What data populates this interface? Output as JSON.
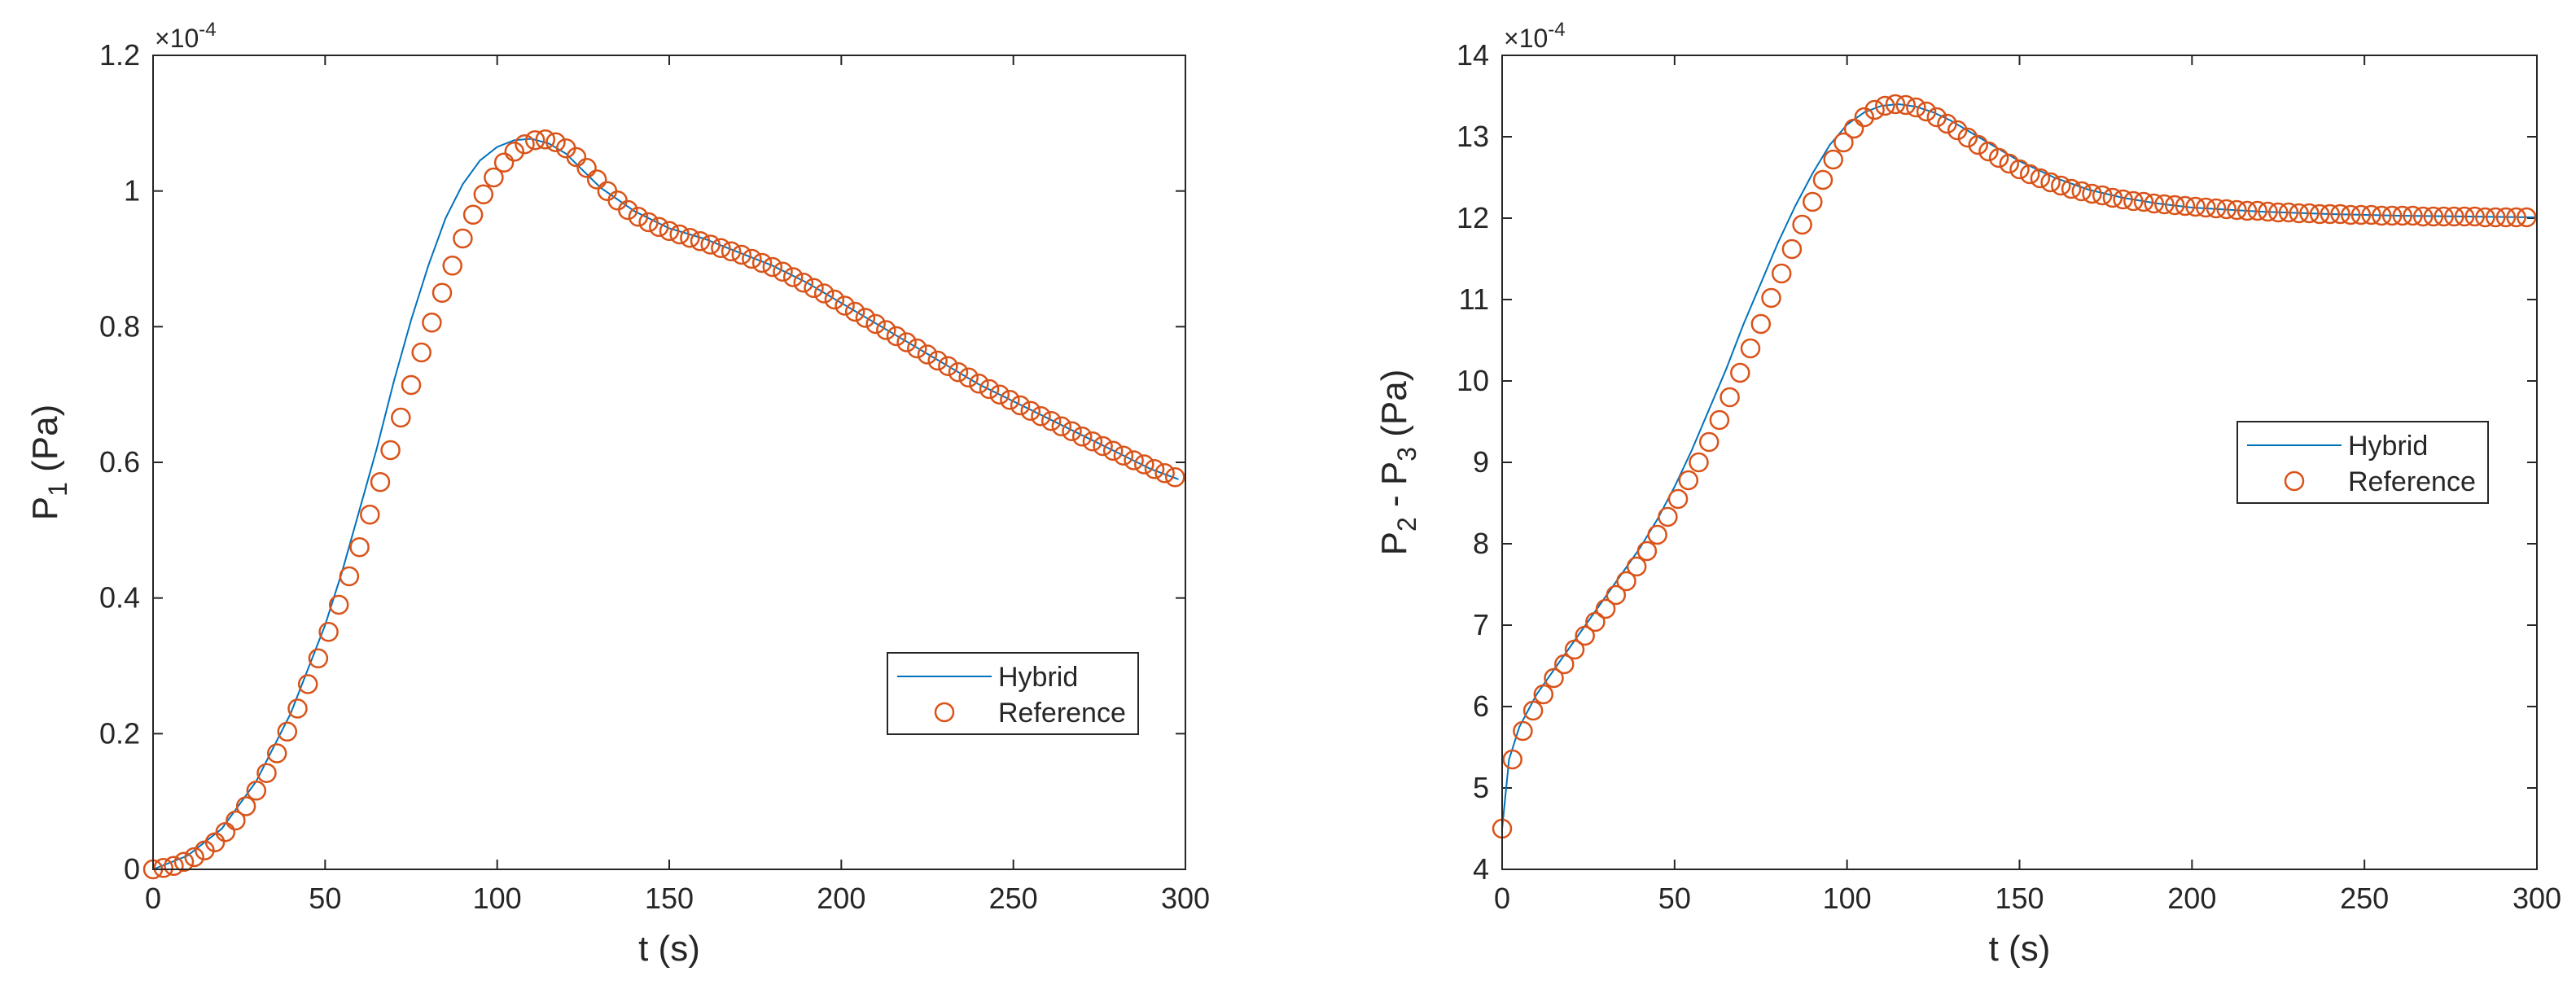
{
  "colors": {
    "hybrid": "#0072BD",
    "reference": "#D95319",
    "axis": "#262626"
  },
  "chart_data": [
    {
      "type": "line",
      "title": "",
      "xlabel": "t (s)",
      "ylabel_main": "P",
      "ylabel_sub": "1",
      "ylabel_tail": " (Pa)",
      "exponent_prefix": "×10",
      "exponent_power": "-4",
      "xlim": [
        0,
        300
      ],
      "ylim": [
        0,
        1.2
      ],
      "xticks": [
        0,
        50,
        100,
        150,
        200,
        250,
        300
      ],
      "xtick_labels": [
        "0",
        "50",
        "100",
        "150",
        "200",
        "250",
        "300"
      ],
      "yticks": [
        0,
        0.2,
        0.4,
        0.6,
        0.8,
        1,
        1.2
      ],
      "ytick_labels": [
        "0",
        "0.2",
        "0.4",
        "0.6",
        "0.8",
        "1",
        "1.2"
      ],
      "legend_position": "lower-right",
      "series": [
        {
          "name": "Hybrid",
          "style": "line",
          "x": [
            0,
            10,
            20,
            30,
            40,
            50,
            55,
            60,
            65,
            70,
            75,
            80,
            85,
            90,
            95,
            100,
            105,
            110,
            115,
            120,
            125,
            130,
            140,
            150,
            160,
            170,
            180,
            190,
            200,
            210,
            220,
            230,
            240,
            250,
            260,
            270,
            280,
            290,
            298
          ],
          "values": [
            0,
            0.02,
            0.06,
            0.13,
            0.23,
            0.36,
            0.44,
            0.53,
            0.62,
            0.72,
            0.81,
            0.89,
            0.96,
            1.01,
            1.045,
            1.065,
            1.075,
            1.077,
            1.07,
            1.055,
            1.03,
            1.005,
            0.97,
            0.945,
            0.93,
            0.91,
            0.89,
            0.865,
            0.835,
            0.805,
            0.775,
            0.745,
            0.715,
            0.69,
            0.665,
            0.64,
            0.615,
            0.59,
            0.575
          ]
        },
        {
          "name": "Reference",
          "style": "markers",
          "marker": "circle",
          "x": [
            0,
            3,
            6,
            9,
            12,
            15,
            18,
            21,
            24,
            27,
            30,
            33,
            36,
            39,
            42,
            45,
            48,
            51,
            54,
            57,
            60,
            63,
            66,
            69,
            72,
            75,
            78,
            81,
            84,
            87,
            90,
            93,
            96,
            99,
            102,
            105,
            108,
            111,
            114,
            117,
            120,
            123,
            126,
            129,
            132,
            135,
            138,
            141,
            144,
            147,
            150,
            153,
            156,
            159,
            162,
            165,
            168,
            171,
            174,
            177,
            180,
            183,
            186,
            189,
            192,
            195,
            198,
            201,
            204,
            207,
            210,
            213,
            216,
            219,
            222,
            225,
            228,
            231,
            234,
            237,
            240,
            243,
            246,
            249,
            252,
            255,
            258,
            261,
            264,
            267,
            270,
            273,
            276,
            279,
            282,
            285,
            288,
            291,
            294,
            297
          ],
          "values": [
            0,
            0.002,
            0.005,
            0.011,
            0.018,
            0.028,
            0.04,
            0.055,
            0.072,
            0.093,
            0.116,
            0.142,
            0.171,
            0.203,
            0.237,
            0.273,
            0.311,
            0.35,
            0.39,
            0.432,
            0.475,
            0.523,
            0.571,
            0.618,
            0.666,
            0.714,
            0.762,
            0.806,
            0.85,
            0.89,
            0.93,
            0.965,
            0.995,
            1.02,
            1.042,
            1.058,
            1.069,
            1.075,
            1.076,
            1.072,
            1.063,
            1.05,
            1.034,
            1.017,
            1.0,
            0.986,
            0.972,
            0.962,
            0.954,
            0.947,
            0.941,
            0.936,
            0.931,
            0.926,
            0.921,
            0.916,
            0.911,
            0.906,
            0.9,
            0.894,
            0.888,
            0.881,
            0.873,
            0.865,
            0.857,
            0.849,
            0.84,
            0.831,
            0.822,
            0.813,
            0.804,
            0.795,
            0.786,
            0.777,
            0.768,
            0.759,
            0.75,
            0.742,
            0.733,
            0.725,
            0.716,
            0.708,
            0.7,
            0.692,
            0.684,
            0.676,
            0.668,
            0.661,
            0.653,
            0.646,
            0.638,
            0.631,
            0.624,
            0.617,
            0.61,
            0.603,
            0.597,
            0.59,
            0.584,
            0.578
          ]
        }
      ]
    },
    {
      "type": "line",
      "title": "",
      "xlabel": "t (s)",
      "ylabel_main": "P",
      "ylabel_sub": "2",
      "ylabel_mid": " - P",
      "ylabel_sub2": "3",
      "ylabel_tail": " (Pa)",
      "exponent_prefix": "×10",
      "exponent_power": "-4",
      "xlim": [
        0,
        300
      ],
      "ylim": [
        4,
        14
      ],
      "xticks": [
        0,
        50,
        100,
        150,
        200,
        250,
        300
      ],
      "xtick_labels": [
        "0",
        "50",
        "100",
        "150",
        "200",
        "250",
        "300"
      ],
      "yticks": [
        4,
        5,
        6,
        7,
        8,
        9,
        10,
        11,
        12,
        13,
        14
      ],
      "ytick_labels": [
        "4",
        "5",
        "6",
        "7",
        "8",
        "9",
        "10",
        "11",
        "12",
        "13",
        "14"
      ],
      "legend_position": "right",
      "series": [
        {
          "name": "Hybrid",
          "style": "line",
          "x": [
            0,
            2,
            5,
            10,
            15,
            20,
            25,
            30,
            35,
            40,
            45,
            50,
            55,
            60,
            65,
            70,
            75,
            80,
            85,
            90,
            95,
            100,
            105,
            110,
            115,
            120,
            125,
            130,
            140,
            150,
            160,
            170,
            180,
            190,
            200,
            220,
            240,
            260,
            280,
            300
          ],
          "values": [
            4.5,
            5.35,
            5.75,
            6.15,
            6.45,
            6.75,
            7.05,
            7.35,
            7.65,
            7.95,
            8.3,
            8.7,
            9.15,
            9.65,
            10.15,
            10.7,
            11.2,
            11.7,
            12.15,
            12.55,
            12.9,
            13.15,
            13.3,
            13.38,
            13.4,
            13.37,
            13.3,
            13.2,
            12.95,
            12.7,
            12.5,
            12.35,
            12.25,
            12.18,
            12.13,
            12.08,
            12.05,
            12.03,
            12.02,
            12.01
          ]
        },
        {
          "name": "Reference",
          "style": "markers",
          "marker": "circle",
          "x": [
            0,
            3,
            6,
            9,
            12,
            15,
            18,
            21,
            24,
            27,
            30,
            33,
            36,
            39,
            42,
            45,
            48,
            51,
            54,
            57,
            60,
            63,
            66,
            69,
            72,
            75,
            78,
            81,
            84,
            87,
            90,
            93,
            96,
            99,
            102,
            105,
            108,
            111,
            114,
            117,
            120,
            123,
            126,
            129,
            132,
            135,
            138,
            141,
            144,
            147,
            150,
            153,
            156,
            159,
            162,
            165,
            168,
            171,
            174,
            177,
            180,
            183,
            186,
            189,
            192,
            195,
            198,
            201,
            204,
            207,
            210,
            213,
            216,
            219,
            222,
            225,
            228,
            231,
            234,
            237,
            240,
            243,
            246,
            249,
            252,
            255,
            258,
            261,
            264,
            267,
            270,
            273,
            276,
            279,
            282,
            285,
            288,
            291,
            294,
            297
          ],
          "values": [
            4.5,
            5.35,
            5.7,
            5.95,
            6.15,
            6.35,
            6.52,
            6.7,
            6.87,
            7.04,
            7.2,
            7.37,
            7.54,
            7.72,
            7.91,
            8.11,
            8.33,
            8.55,
            8.78,
            9.0,
            9.25,
            9.52,
            9.8,
            10.1,
            10.4,
            10.7,
            11.02,
            11.32,
            11.62,
            11.92,
            12.2,
            12.47,
            12.72,
            12.93,
            13.1,
            13.24,
            13.33,
            13.38,
            13.4,
            13.39,
            13.36,
            13.31,
            13.24,
            13.16,
            13.08,
            12.99,
            12.9,
            12.82,
            12.74,
            12.67,
            12.6,
            12.54,
            12.49,
            12.44,
            12.4,
            12.36,
            12.33,
            12.3,
            12.28,
            12.25,
            12.23,
            12.21,
            12.2,
            12.18,
            12.17,
            12.16,
            12.15,
            12.14,
            12.13,
            12.12,
            12.11,
            12.1,
            12.09,
            12.09,
            12.08,
            12.07,
            12.07,
            12.06,
            12.06,
            12.05,
            12.05,
            12.05,
            12.04,
            12.04,
            12.04,
            12.03,
            12.03,
            12.03,
            12.03,
            12.02,
            12.02,
            12.02,
            12.02,
            12.02,
            12.02,
            12.01,
            12.01,
            12.01,
            12.01,
            12.01
          ]
        }
      ]
    }
  ]
}
